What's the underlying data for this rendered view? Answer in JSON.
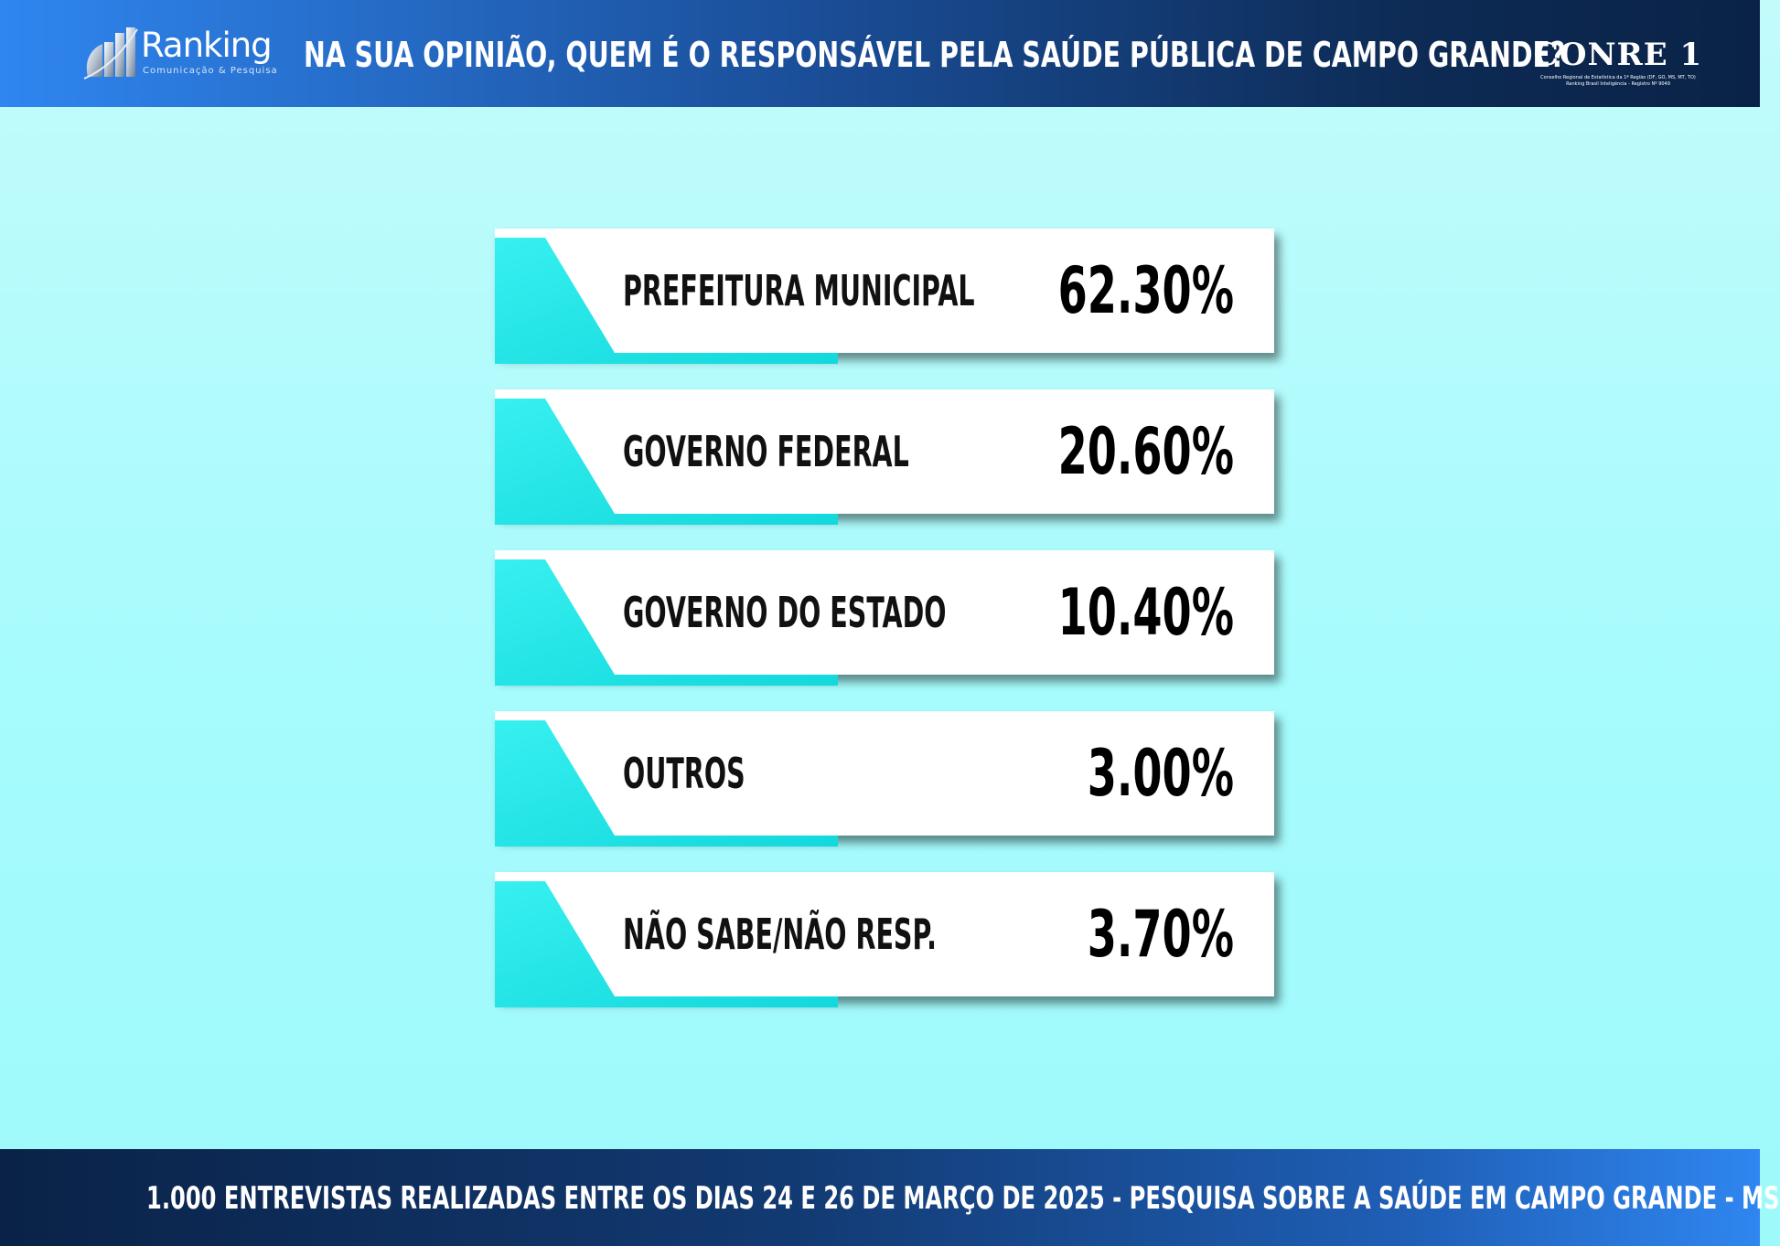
{
  "header": {
    "brand_name": "Ranking",
    "brand_subtitle": "Comunicação & Pesquisa",
    "title": "NA SUA OPINIÃO, QUEM É O RESPONSÁVEL PELA SAÚDE PÚBLICA DE CAMPO GRANDE?",
    "conre_name": "CONRE 1",
    "conre_line1": "Conselho Regional de Estatística da 1ª Região (DF, GO, MS, MT, TO)",
    "conre_line2": "Ranking Brasil Inteligência - Registro Nº 9049"
  },
  "chart_data": {
    "type": "bar",
    "categories": [
      "PREFEITURA MUNICIPAL",
      "GOVERNO FEDERAL",
      "GOVERNO DO ESTADO",
      "OUTROS",
      "NÃO SABE/NÃO RESP."
    ],
    "values": [
      62.3,
      20.6,
      10.4,
      3.0,
      3.7
    ],
    "value_labels": [
      "62.30%",
      "20.60%",
      "10.40%",
      "3.00%",
      "3.70%"
    ],
    "title": "NA SUA OPINIÃO, QUEM É O RESPONSÁVEL PELA SAÚDE PÚBLICA DE CAMPO GRANDE?",
    "unit": "%",
    "grid": false,
    "legend": "none",
    "accent_color": "#1fe3e6",
    "card_color": "#ffffff"
  },
  "footer": {
    "note": "1.000 ENTREVISTAS REALIZADAS ENTRE OS DIAS 24 E 26 DE MARÇO DE 2025  - PESQUISA SOBRE A SAÚDE EM CAMPO GRANDE - MS"
  }
}
